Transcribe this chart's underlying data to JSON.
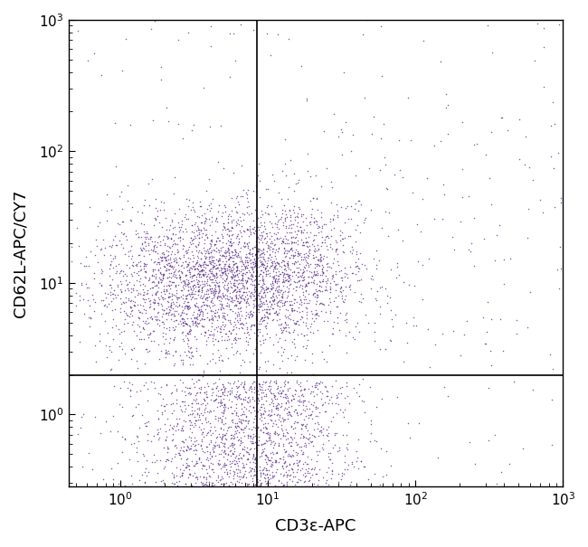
{
  "xlabel": "CD3ε-APC",
  "ylabel": "CD62L-APC/CY7",
  "xline": 8.5,
  "yline": 2.0,
  "dot_color": "#5B2D8E",
  "dot_alpha": 0.75,
  "dot_size": 1.2,
  "background_color": "#ffffff",
  "figsize": [
    6.5,
    6.05
  ],
  "dpi": 100,
  "seed": 42
}
